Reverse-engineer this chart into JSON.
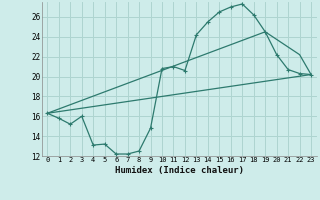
{
  "xlabel": "Humidex (Indice chaleur)",
  "bg_color": "#ceecea",
  "grid_color": "#aed4d0",
  "line_color": "#2d7a6e",
  "xlim": [
    -0.5,
    23.5
  ],
  "ylim": [
    12,
    27.5
  ],
  "xticks": [
    0,
    1,
    2,
    3,
    4,
    5,
    6,
    7,
    8,
    9,
    10,
    11,
    12,
    13,
    14,
    15,
    16,
    17,
    18,
    19,
    20,
    21,
    22,
    23
  ],
  "yticks": [
    12,
    14,
    16,
    18,
    20,
    22,
    24,
    26
  ],
  "line1_x": [
    0,
    1,
    2,
    3,
    4,
    5,
    6,
    7,
    8,
    9,
    10,
    11,
    12,
    13,
    14,
    15,
    16,
    17,
    18,
    19,
    20,
    21,
    22,
    23
  ],
  "line1_y": [
    16.3,
    15.8,
    15.2,
    16.0,
    13.1,
    13.2,
    12.2,
    12.2,
    12.5,
    14.8,
    20.8,
    21.0,
    20.6,
    24.2,
    25.5,
    26.5,
    27.0,
    27.3,
    26.2,
    24.5,
    22.2,
    20.7,
    20.3,
    20.2
  ],
  "line2_x": [
    0,
    23
  ],
  "line2_y": [
    16.3,
    20.2
  ],
  "line3_x": [
    0,
    19,
    22,
    23
  ],
  "line3_y": [
    16.3,
    24.5,
    22.2,
    20.2
  ]
}
